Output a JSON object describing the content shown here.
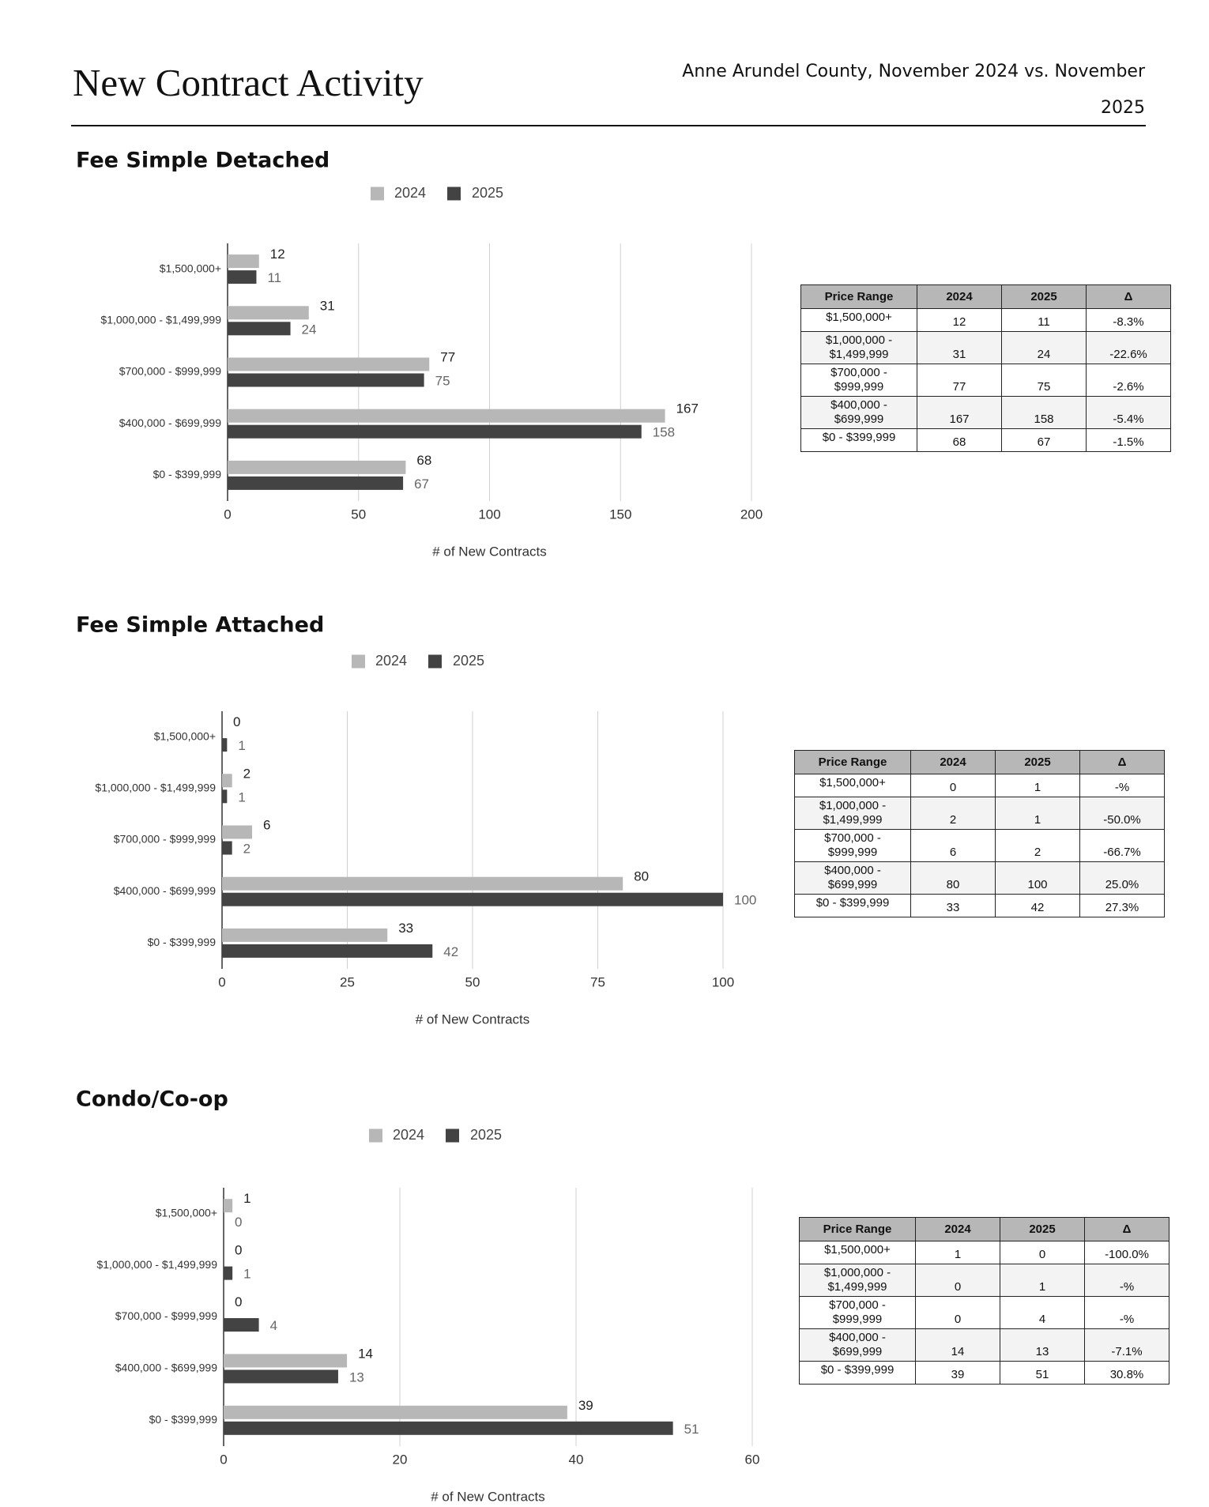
{
  "header": {
    "title": "New Contract Activity",
    "subtitle": "Anne Arundel County, November 2024 vs. November 2025"
  },
  "chart_data": [
    {
      "type": "bar",
      "orientation": "horizontal",
      "title": "Fee Simple Detached",
      "legend": "top",
      "categories": [
        "$1,500,000+",
        "$1,000,000 - $1,499,999",
        "$700,000 - $999,999",
        "$400,000 - $699,999",
        "$0 - $399,999"
      ],
      "series": [
        {
          "name": "2024",
          "color": "#b7b7b7",
          "values": [
            12,
            31,
            77,
            167,
            68
          ]
        },
        {
          "name": "2025",
          "color": "#434343",
          "values": [
            11,
            24,
            75,
            158,
            67
          ]
        }
      ],
      "xlim": [
        0,
        200
      ],
      "xticks": [
        0,
        50,
        100,
        150,
        200
      ],
      "xlabel": "# of New Contracts",
      "grid": true
    },
    {
      "type": "bar",
      "orientation": "horizontal",
      "title": "Fee Simple Attached",
      "legend": "top",
      "categories": [
        "$1,500,000+",
        "$1,000,000 - $1,499,999",
        "$700,000 - $999,999",
        "$400,000 - $699,999",
        "$0 - $399,999"
      ],
      "series": [
        {
          "name": "2024",
          "color": "#b7b7b7",
          "values": [
            0,
            2,
            6,
            80,
            33
          ]
        },
        {
          "name": "2025",
          "color": "#434343",
          "values": [
            1,
            1,
            2,
            100,
            42
          ]
        }
      ],
      "xlim": [
        0,
        100
      ],
      "xticks": [
        0,
        25,
        50,
        75,
        100
      ],
      "xlabel": "# of New Contracts",
      "grid": true
    },
    {
      "type": "bar",
      "orientation": "horizontal",
      "title": "Condo/Co-op",
      "legend": "top",
      "categories": [
        "$1,500,000+",
        "$1,000,000 - $1,499,999",
        "$700,000 - $999,999",
        "$400,000 - $699,999",
        "$0 - $399,999"
      ],
      "series": [
        {
          "name": "2024",
          "color": "#b7b7b7",
          "values": [
            1,
            0,
            0,
            14,
            39
          ]
        },
        {
          "name": "2025",
          "color": "#434343",
          "values": [
            0,
            1,
            4,
            13,
            51
          ]
        }
      ],
      "xlim": [
        0,
        60
      ],
      "xticks": [
        0,
        20,
        40,
        60
      ],
      "xlabel": "# of New Contracts",
      "grid": true
    }
  ],
  "tables": [
    {
      "columns": [
        "Price Range",
        "2024",
        "2025",
        "Δ"
      ],
      "rows": [
        [
          "$1,500,000+",
          12,
          11,
          "-8.3%"
        ],
        [
          "$1,000,000 - $1,499,999",
          31,
          24,
          "-22.6%"
        ],
        [
          "$700,000 - $999,999",
          77,
          75,
          "-2.6%"
        ],
        [
          "$400,000 - $699,999",
          167,
          158,
          "-5.4%"
        ],
        [
          "$0 - $399,999",
          68,
          67,
          "-1.5%"
        ]
      ]
    },
    {
      "columns": [
        "Price Range",
        "2024",
        "2025",
        "Δ"
      ],
      "rows": [
        [
          "$1,500,000+",
          0,
          1,
          "-%"
        ],
        [
          "$1,000,000 - $1,499,999",
          2,
          1,
          "-50.0%"
        ],
        [
          "$700,000 - $999,999",
          6,
          2,
          "-66.7%"
        ],
        [
          "$400,000 - $699,999",
          80,
          100,
          "25.0%"
        ],
        [
          "$0 - $399,999",
          33,
          42,
          "27.3%"
        ]
      ]
    },
    {
      "columns": [
        "Price Range",
        "2024",
        "2025",
        "Δ"
      ],
      "rows": [
        [
          "$1,500,000+",
          1,
          0,
          "-100.0%"
        ],
        [
          "$1,000,000 - $1,499,999",
          0,
          1,
          "-%"
        ],
        [
          "$700,000 - $999,999",
          0,
          4,
          "-%"
        ],
        [
          "$400,000 - $699,999",
          14,
          13,
          "-7.1%"
        ],
        [
          "$0 - $399,999",
          39,
          51,
          "30.8%"
        ]
      ]
    }
  ]
}
